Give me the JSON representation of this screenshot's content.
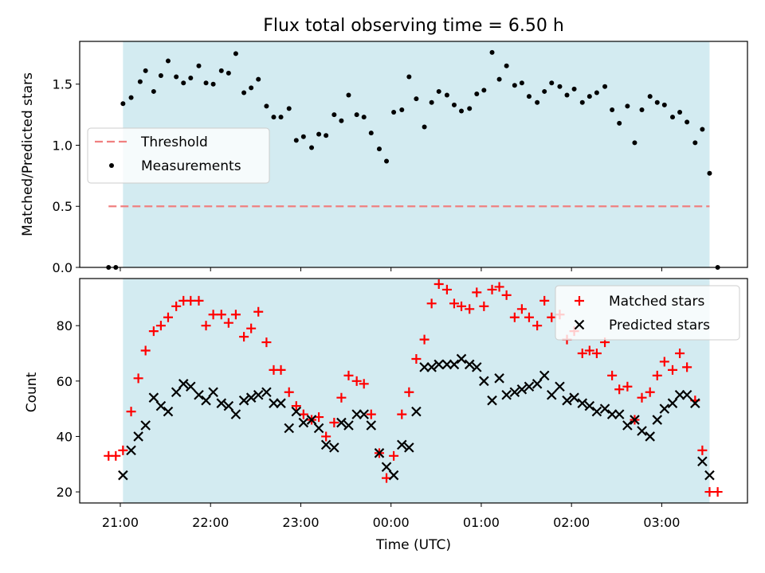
{
  "colors": {
    "span": "#d3ebf1",
    "threshold": "#f08080",
    "measurement": "#000000",
    "matched": "#ff0000",
    "predicted": "#000000",
    "axes": "#000000"
  },
  "chart_data": [
    {
      "type": "scatter",
      "title": "Flux total observing time = 6.50 h",
      "xlabel": "",
      "ylabel": "Matched/Predicted stars",
      "x_unit": "hours (UTC), times after 24 are on the next day",
      "xlim": [
        20.55,
        27.95
      ],
      "ylim": [
        0.0,
        1.85
      ],
      "yticks": [
        0.0,
        0.5,
        1.0,
        1.5
      ],
      "ytick_labels": [
        "0.0",
        "0.5",
        "1.0",
        "1.5"
      ],
      "xticks": [
        21,
        22,
        23,
        24,
        25,
        26,
        27
      ],
      "observing_span": [
        21.03,
        27.53
      ],
      "legend": [
        "Threshold",
        "Measurements"
      ],
      "legend_position": "center-left",
      "threshold": {
        "name": "Threshold",
        "y": 0.5,
        "x_range": [
          20.87,
          27.53
        ]
      },
      "series": [
        {
          "name": "Measurements",
          "x": [
            20.87,
            20.95,
            21.03,
            21.12,
            21.22,
            21.28,
            21.37,
            21.45,
            21.53,
            21.62,
            21.7,
            21.78,
            21.87,
            21.95,
            22.03,
            22.12,
            22.2,
            22.28,
            22.37,
            22.45,
            22.53,
            22.62,
            22.7,
            22.78,
            22.87,
            22.95,
            23.03,
            23.12,
            23.2,
            23.28,
            23.37,
            23.45,
            23.53,
            23.62,
            23.7,
            23.78,
            23.87,
            23.95,
            24.03,
            24.12,
            24.2,
            24.28,
            24.37,
            24.45,
            24.53,
            24.62,
            24.7,
            24.78,
            24.87,
            24.95,
            25.03,
            25.12,
            25.2,
            25.28,
            25.37,
            25.45,
            25.53,
            25.62,
            25.7,
            25.78,
            25.87,
            25.95,
            26.03,
            26.12,
            26.2,
            26.28,
            26.37,
            26.45,
            26.53,
            26.62,
            26.7,
            26.78,
            26.87,
            26.95,
            27.03,
            27.12,
            27.2,
            27.28,
            27.37,
            27.45,
            27.53,
            27.62
          ],
          "y": [
            0.0,
            0.0,
            1.34,
            1.39,
            1.52,
            1.61,
            1.44,
            1.57,
            1.69,
            1.56,
            1.51,
            1.55,
            1.65,
            1.51,
            1.5,
            1.61,
            1.59,
            1.75,
            1.43,
            1.47,
            1.54,
            1.32,
            1.23,
            1.23,
            1.3,
            1.04,
            1.07,
            0.98,
            1.09,
            1.08,
            1.25,
            1.2,
            1.41,
            1.25,
            1.23,
            1.1,
            0.97,
            0.87,
            1.27,
            1.29,
            1.56,
            1.38,
            1.15,
            1.35,
            1.44,
            1.41,
            1.33,
            1.28,
            1.3,
            1.42,
            1.45,
            1.76,
            1.54,
            1.65,
            1.49,
            1.51,
            1.4,
            1.35,
            1.44,
            1.51,
            1.48,
            1.41,
            1.46,
            1.35,
            1.4,
            1.43,
            1.48,
            1.29,
            1.18,
            1.32,
            1.02,
            1.29,
            1.4,
            1.35,
            1.33,
            1.23,
            1.27,
            1.19,
            1.02,
            1.13,
            0.77,
            0.0
          ]
        }
      ]
    },
    {
      "type": "scatter",
      "title": "",
      "xlabel": "Time (UTC)",
      "ylabel": "Count",
      "x_unit": "hours (UTC), times after 24 are on the next day",
      "xlim": [
        20.55,
        27.95
      ],
      "ylim": [
        16,
        97
      ],
      "yticks": [
        20,
        40,
        60,
        80
      ],
      "ytick_labels": [
        "20",
        "40",
        "60",
        "80"
      ],
      "xticks": [
        21,
        22,
        23,
        24,
        25,
        26,
        27
      ],
      "xtick_labels": [
        "21:00",
        "22:00",
        "23:00",
        "00:00",
        "01:00",
        "02:00",
        "03:00"
      ],
      "observing_span": [
        21.03,
        27.53
      ],
      "legend": [
        "Matched stars",
        "Predicted stars"
      ],
      "legend_position": "top-right",
      "series": [
        {
          "name": "Matched stars",
          "marker": "plus",
          "x": [
            20.87,
            20.95,
            21.03,
            21.12,
            21.2,
            21.28,
            21.37,
            21.45,
            21.53,
            21.62,
            21.7,
            21.78,
            21.87,
            21.95,
            22.03,
            22.12,
            22.2,
            22.28,
            22.37,
            22.45,
            22.53,
            22.62,
            22.7,
            22.78,
            22.87,
            22.95,
            23.03,
            23.12,
            23.2,
            23.28,
            23.37,
            23.45,
            23.53,
            23.62,
            23.7,
            23.78,
            23.87,
            23.95,
            24.03,
            24.12,
            24.2,
            24.28,
            24.37,
            24.45,
            24.53,
            24.62,
            24.7,
            24.78,
            24.87,
            24.95,
            25.03,
            25.12,
            25.2,
            25.28,
            25.37,
            25.45,
            25.53,
            25.62,
            25.7,
            25.78,
            25.87,
            25.95,
            26.03,
            26.12,
            26.2,
            26.28,
            26.37,
            26.45,
            26.53,
            26.62,
            26.7,
            26.78,
            26.87,
            26.95,
            27.03,
            27.12,
            27.2,
            27.28,
            27.37,
            27.45,
            27.53,
            27.62
          ],
          "y": [
            33,
            33,
            35,
            49,
            61,
            71,
            78,
            80,
            83,
            87,
            89,
            89,
            89,
            80,
            84,
            84,
            81,
            84,
            76,
            79,
            85,
            74,
            64,
            64,
            56,
            51,
            48,
            46,
            47,
            40,
            45,
            54,
            62,
            60,
            59,
            48,
            34,
            25,
            33,
            48,
            56,
            68,
            75,
            88,
            95,
            93,
            88,
            87,
            86,
            92,
            87,
            93,
            94,
            91,
            83,
            86,
            83,
            80,
            89,
            83,
            84,
            75,
            78,
            70,
            71,
            70,
            74,
            62,
            57,
            58,
            46,
            54,
            56,
            62,
            67,
            64,
            70,
            65,
            53,
            35,
            20,
            20
          ]
        },
        {
          "name": "Predicted stars",
          "marker": "x",
          "x": [
            21.03,
            21.12,
            21.2,
            21.28,
            21.37,
            21.45,
            21.53,
            21.62,
            21.7,
            21.78,
            21.87,
            21.95,
            22.03,
            22.12,
            22.2,
            22.28,
            22.37,
            22.45,
            22.53,
            22.62,
            22.7,
            22.78,
            22.87,
            22.95,
            23.03,
            23.12,
            23.2,
            23.28,
            23.37,
            23.45,
            23.53,
            23.62,
            23.7,
            23.78,
            23.87,
            23.95,
            24.03,
            24.12,
            24.2,
            24.28,
            24.37,
            24.45,
            24.53,
            24.62,
            24.7,
            24.78,
            24.87,
            24.95,
            25.03,
            25.12,
            25.2,
            25.28,
            25.37,
            25.45,
            25.53,
            25.62,
            25.7,
            25.78,
            25.87,
            25.95,
            26.03,
            26.12,
            26.2,
            26.28,
            26.37,
            26.45,
            26.53,
            26.62,
            26.7,
            26.78,
            26.87,
            26.95,
            27.03,
            27.12,
            27.2,
            27.28,
            27.37,
            27.45,
            27.53
          ],
          "y": [
            26,
            35,
            40,
            44,
            54,
            51,
            49,
            56,
            59,
            58,
            55,
            53,
            56,
            52,
            51,
            48,
            53,
            54,
            55,
            56,
            52,
            52,
            43,
            49,
            45,
            46,
            43,
            37,
            36,
            45,
            44,
            48,
            48,
            44,
            34,
            29,
            26,
            37,
            36,
            49,
            65,
            65,
            66,
            66,
            66,
            68,
            66,
            65,
            60,
            53,
            61,
            55,
            56,
            57,
            58,
            59,
            62,
            55,
            58,
            53,
            54,
            52,
            51,
            49,
            50,
            48,
            48,
            44,
            46,
            42,
            40,
            46,
            50,
            52,
            55,
            55,
            52,
            31,
            26
          ]
        }
      ]
    }
  ]
}
